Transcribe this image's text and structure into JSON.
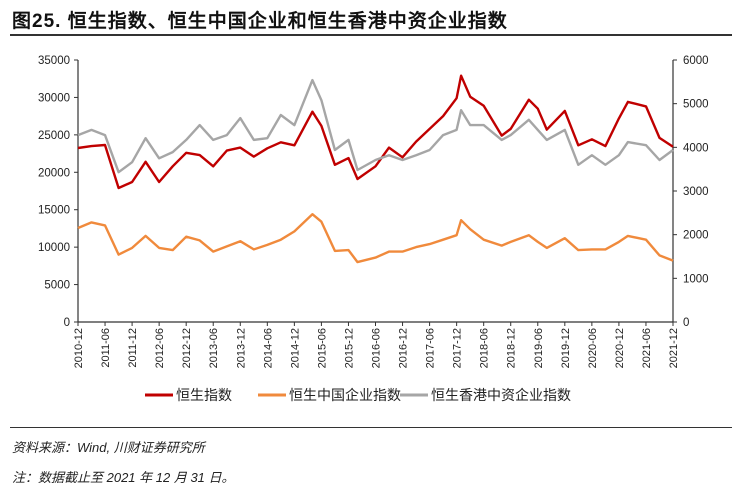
{
  "title": "图25. 恒生指数、恒生中国企业和恒生香港中资企业指数",
  "source": "资料来源：Wind, 川财证券研究所",
  "footnote": "注：数据截止至 2021 年 12 月 31 日。",
  "chart_data": {
    "type": "line",
    "title": "恒生指数、恒生中国企业和恒生香港中资企业指数",
    "x_ticks": [
      "2010-12",
      "2011-06",
      "2011-12",
      "2012-06",
      "2012-12",
      "2013-06",
      "2013-12",
      "2014-06",
      "2014-12",
      "2015-06",
      "2015-12",
      "2016-06",
      "2016-12",
      "2017-06",
      "2017-12",
      "2018-06",
      "2018-12",
      "2019-06",
      "2019-12",
      "2020-06",
      "2020-12",
      "2021-06",
      "2021-12"
    ],
    "left_axis": {
      "ylim": [
        0,
        35000
      ],
      "ticks": [
        "0",
        "5000",
        "10000",
        "15000",
        "20000",
        "25000",
        "30000",
        "35000"
      ]
    },
    "right_axis": {
      "ylim": [
        0,
        6000
      ],
      "ticks": [
        "0",
        "1000",
        "2000",
        "3000",
        "4000",
        "5000",
        "6000"
      ]
    },
    "x": [
      "2010-12",
      "2011-03",
      "2011-06",
      "2011-09",
      "2011-12",
      "2012-03",
      "2012-06",
      "2012-09",
      "2012-12",
      "2013-03",
      "2013-06",
      "2013-09",
      "2013-12",
      "2014-03",
      "2014-06",
      "2014-09",
      "2014-12",
      "2015-04",
      "2015-06",
      "2015-09",
      "2015-12",
      "2016-02",
      "2016-06",
      "2016-09",
      "2016-12",
      "2017-03",
      "2017-06",
      "2017-09",
      "2017-12",
      "2018-01",
      "2018-03",
      "2018-06",
      "2018-10",
      "2018-12",
      "2019-04",
      "2019-06",
      "2019-08",
      "2019-12",
      "2020-03",
      "2020-06",
      "2020-09",
      "2020-12",
      "2021-02",
      "2021-06",
      "2021-09",
      "2021-12"
    ],
    "series": [
      {
        "name": "恒生指数",
        "axis": "left",
        "color": "#c00000",
        "values": [
          23250,
          23500,
          23650,
          17900,
          18700,
          21400,
          18700,
          20800,
          22600,
          22300,
          20800,
          22900,
          23300,
          22100,
          23200,
          24000,
          23600,
          28100,
          26200,
          21000,
          21900,
          19100,
          20800,
          23300,
          22000,
          24100,
          25800,
          27500,
          29900,
          32900,
          30100,
          28900,
          24900,
          25800,
          29700,
          28500,
          25700,
          28200,
          23600,
          24400,
          23500,
          27200,
          29400,
          28800,
          24600,
          23400
        ]
      },
      {
        "name": "恒生中国企业指数",
        "axis": "left",
        "color": "#f08a3c",
        "values": [
          12560,
          13300,
          12900,
          9000,
          9900,
          11500,
          9900,
          9600,
          11400,
          10900,
          9400,
          10100,
          10800,
          9700,
          10300,
          11000,
          12100,
          14400,
          13400,
          9500,
          9600,
          8000,
          8600,
          9400,
          9400,
          10000,
          10400,
          11000,
          11600,
          13600,
          12400,
          11000,
          10200,
          10700,
          11600,
          10700,
          9900,
          11200,
          9600,
          9700,
          9700,
          10700,
          11500,
          11000,
          8900,
          8200
        ]
      },
      {
        "name": "恒生香港中资企业指数",
        "axis": "right",
        "color": "#a6a6a6",
        "values": [
          4280,
          4400,
          4280,
          3430,
          3660,
          4210,
          3750,
          3890,
          4170,
          4510,
          4170,
          4280,
          4670,
          4170,
          4210,
          4740,
          4510,
          5540,
          5080,
          3940,
          4170,
          3480,
          3710,
          3820,
          3710,
          3820,
          3940,
          4280,
          4400,
          4850,
          4510,
          4510,
          4170,
          4280,
          4630,
          4400,
          4170,
          4400,
          3600,
          3820,
          3600,
          3820,
          4120,
          4050,
          3710,
          3940
        ]
      }
    ],
    "legend": "bottom"
  }
}
